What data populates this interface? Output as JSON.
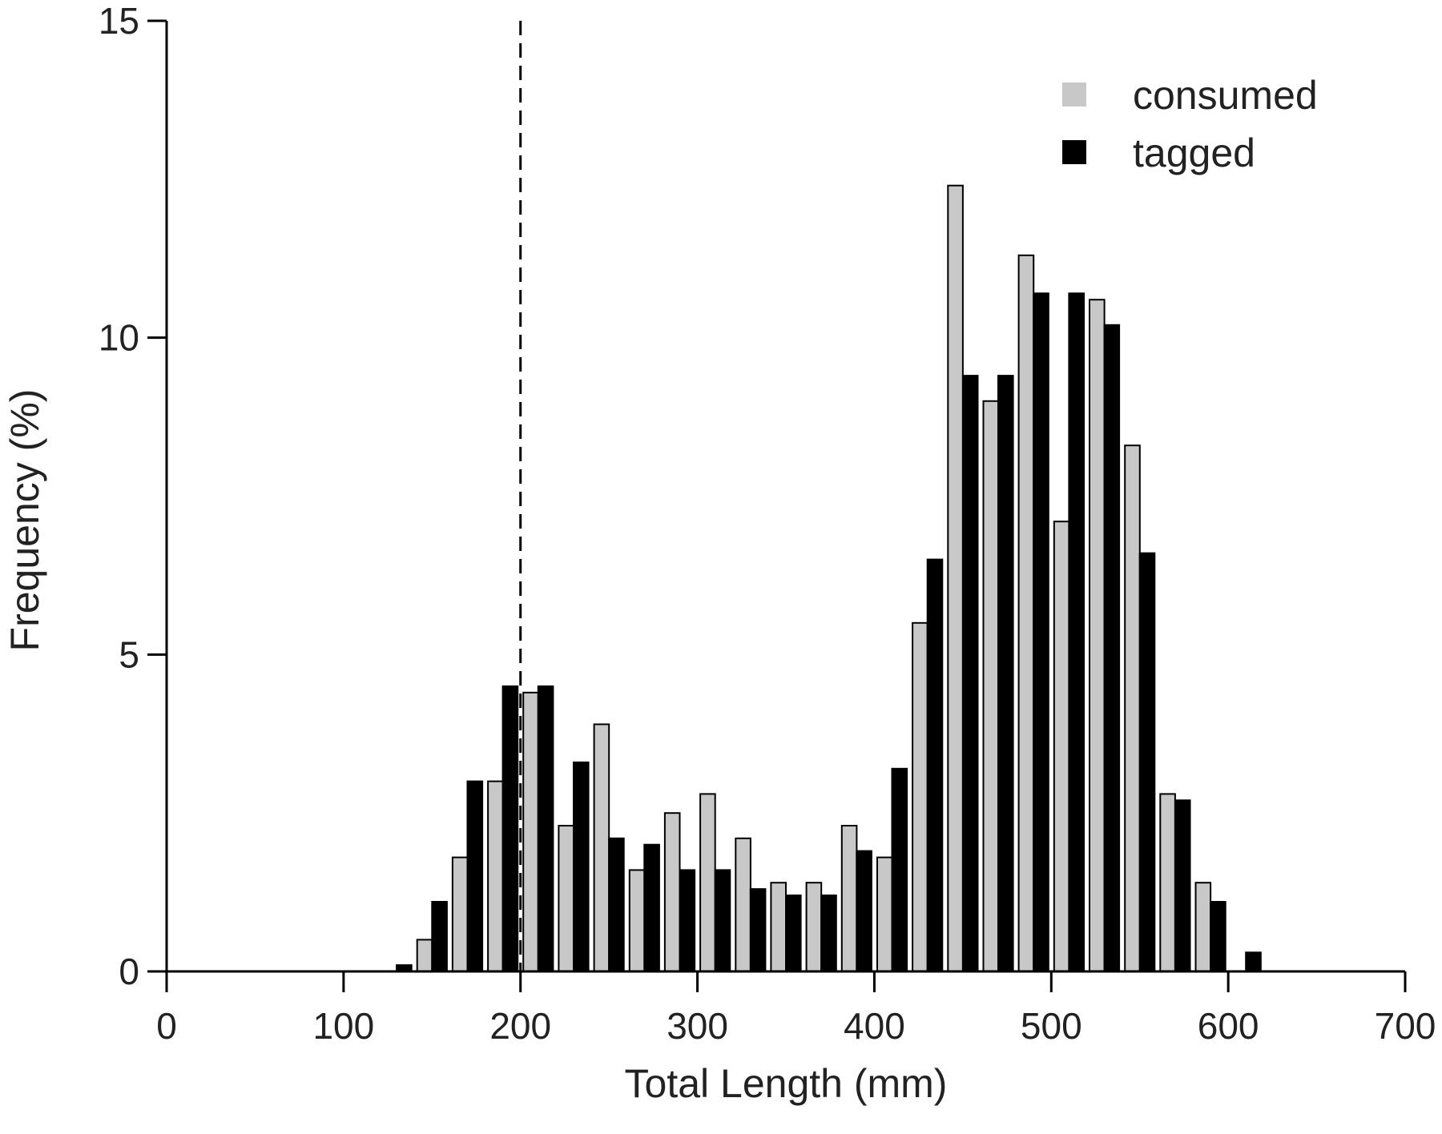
{
  "chart_data": {
    "type": "bar",
    "title": "",
    "xlabel": "Total Length (mm)",
    "ylabel": "Frequency (%)",
    "xlim": [
      0,
      700
    ],
    "ylim": [
      0,
      15
    ],
    "xticks": [
      "0",
      "100",
      "200",
      "300",
      "400",
      "500",
      "600",
      "700"
    ],
    "yticks": [
      "0",
      "5",
      "10",
      "15"
    ],
    "bin_width": 20,
    "categories": [
      130,
      150,
      170,
      190,
      210,
      230,
      250,
      270,
      290,
      310,
      330,
      350,
      370,
      390,
      410,
      430,
      450,
      470,
      490,
      510,
      530,
      550,
      570,
      590,
      610
    ],
    "series": [
      {
        "name": "consumed",
        "color": "#c8c8c8",
        "values": [
          0,
          0.5,
          1.8,
          3.0,
          4.4,
          2.3,
          3.9,
          1.6,
          2.5,
          2.8,
          2.1,
          1.4,
          1.4,
          2.3,
          1.8,
          5.5,
          12.4,
          9.0,
          11.3,
          7.1,
          10.6,
          8.3,
          2.8,
          1.4,
          0
        ]
      },
      {
        "name": "tagged",
        "color": "#000000",
        "values": [
          0.1,
          1.1,
          3.0,
          4.5,
          4.5,
          3.3,
          2.1,
          2.0,
          1.6,
          1.6,
          1.3,
          1.2,
          1.2,
          1.9,
          3.2,
          6.5,
          9.4,
          9.4,
          10.7,
          10.7,
          10.2,
          6.6,
          2.7,
          1.1,
          0.3
        ]
      }
    ],
    "reference_line": {
      "x": 200,
      "style": "dashed"
    },
    "legend": {
      "position": "top-right",
      "entries": [
        "consumed",
        "tagged"
      ]
    },
    "grid": false
  }
}
